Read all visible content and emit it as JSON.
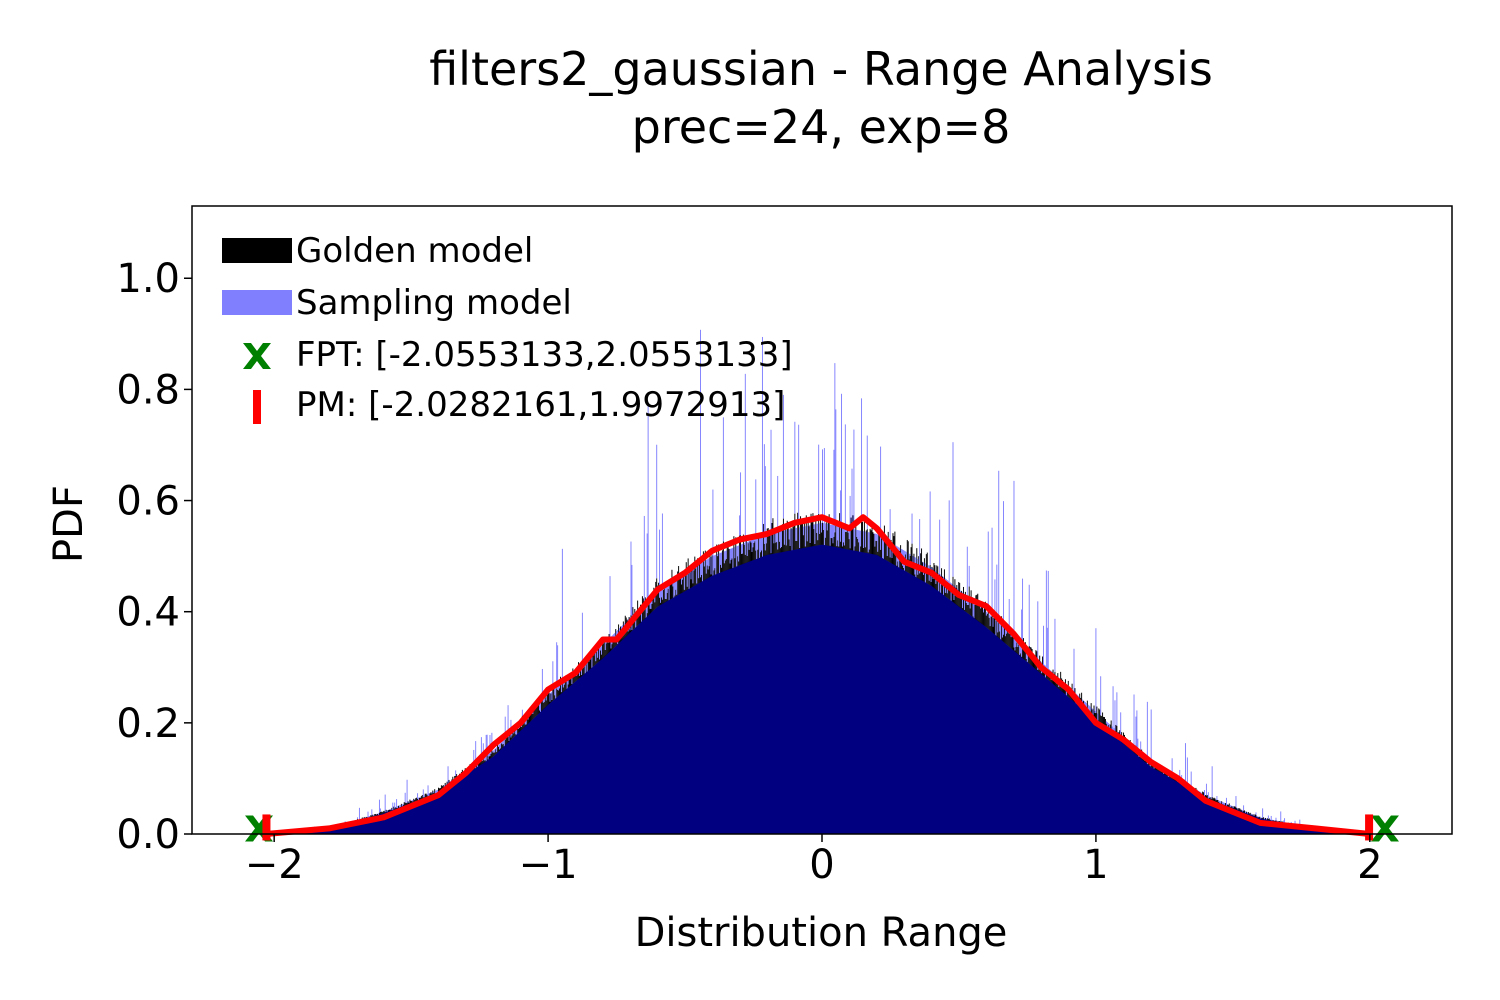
{
  "chart_data": {
    "type": "bar",
    "title": "filters2_gaussian - Range Analysis",
    "subtitle": "prec=24, exp=8",
    "xlabel": "Distribution Range",
    "ylabel": "PDF",
    "xlim": [
      -2.3,
      2.3
    ],
    "ylim": [
      0.0,
      1.13
    ],
    "xticks": [
      -2,
      -1,
      0,
      1,
      2
    ],
    "xtick_labels": [
      "−2",
      "−1",
      "0",
      "1",
      "2"
    ],
    "yticks": [
      0.0,
      0.2,
      0.4,
      0.6,
      0.8,
      1.0
    ],
    "ytick_labels": [
      "0.0",
      "0.2",
      "0.4",
      "0.6",
      "0.8",
      "1.0"
    ],
    "grid": false,
    "legend_position": "top-left",
    "series": [
      {
        "name": "Golden model",
        "kind": "histogram",
        "color": "#000000",
        "x": [
          -2.0,
          -1.8,
          -1.6,
          -1.4,
          -1.2,
          -1.0,
          -0.8,
          -0.6,
          -0.4,
          -0.2,
          0.0,
          0.2,
          0.4,
          0.6,
          0.8,
          1.0,
          1.2,
          1.4,
          1.6,
          1.8,
          2.0
        ],
        "values": [
          0.0,
          0.01,
          0.04,
          0.08,
          0.15,
          0.25,
          0.34,
          0.44,
          0.5,
          0.54,
          0.56,
          0.54,
          0.48,
          0.4,
          0.31,
          0.22,
          0.13,
          0.07,
          0.03,
          0.01,
          0.0
        ]
      },
      {
        "name": "Sampling model",
        "kind": "histogram",
        "color": "#8080ff",
        "x": [
          -2.0,
          -1.8,
          -1.6,
          -1.4,
          -1.2,
          -1.0,
          -0.8,
          -0.6,
          -0.4,
          -0.2,
          0.0,
          0.2,
          0.4,
          0.6,
          0.8,
          1.0,
          1.2,
          1.4,
          1.6,
          1.8,
          2.0
        ],
        "values": [
          0.0,
          0.01,
          0.04,
          0.08,
          0.15,
          0.25,
          0.34,
          0.44,
          0.5,
          0.54,
          0.56,
          0.54,
          0.48,
          0.4,
          0.31,
          0.22,
          0.13,
          0.07,
          0.03,
          0.01,
          0.0
        ],
        "max_spike": 1.0
      },
      {
        "name": "density",
        "kind": "line",
        "color": "#ff0000",
        "x": [
          -2.03,
          -1.8,
          -1.6,
          -1.5,
          -1.4,
          -1.3,
          -1.2,
          -1.1,
          -1.0,
          -0.9,
          -0.8,
          -0.75,
          -0.7,
          -0.6,
          -0.5,
          -0.4,
          -0.3,
          -0.2,
          -0.1,
          0.0,
          0.1,
          0.15,
          0.2,
          0.3,
          0.4,
          0.5,
          0.6,
          0.7,
          0.8,
          0.9,
          1.0,
          1.1,
          1.2,
          1.3,
          1.4,
          1.5,
          1.6,
          1.8,
          2.0
        ],
        "values": [
          0.0,
          0.01,
          0.03,
          0.05,
          0.07,
          0.11,
          0.16,
          0.2,
          0.26,
          0.29,
          0.35,
          0.35,
          0.38,
          0.44,
          0.47,
          0.51,
          0.53,
          0.54,
          0.56,
          0.57,
          0.55,
          0.57,
          0.55,
          0.49,
          0.47,
          0.43,
          0.41,
          0.36,
          0.3,
          0.26,
          0.2,
          0.17,
          0.13,
          0.1,
          0.06,
          0.04,
          0.02,
          0.01,
          0.0
        ]
      }
    ],
    "markers": {
      "fpt": {
        "label": "FPT: [-2.0553133,2.0553133]",
        "x": [
          -2.0553133,
          2.0553133
        ],
        "color": "#008000",
        "symbol": "X"
      },
      "pm": {
        "label": "PM: [-2.0282161,1.9972913]",
        "x": [
          -2.0282161,
          1.9972913
        ],
        "color": "#ff0000",
        "symbol": "|"
      }
    },
    "colors": {
      "navy_fill": "#000080",
      "golden": "#000000",
      "sampling": "#8080ff",
      "curve": "#ff0000",
      "fpt": "#008000",
      "pm": "#ff0000"
    }
  }
}
